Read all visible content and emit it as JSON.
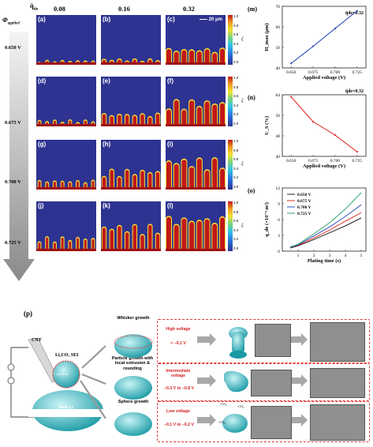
{
  "header": {
    "qde_symbol": "q̄",
    "qde_sub": "de",
    "phi_symbol": "Φ",
    "phi_sub": "applied"
  },
  "columns": [
    "0.08",
    "0.16",
    "0.32"
  ],
  "rows": [
    "0.650 V",
    "0.675 V",
    "0.700 V",
    "0.725 V"
  ],
  "panels": [
    "(a)",
    "(b)",
    "(c)",
    "(d)",
    "(e)",
    "(f)",
    "(g)",
    "(h)",
    "(i)",
    "(j)",
    "(k)",
    "(l)"
  ],
  "scale_bar": "20 μm",
  "colorbar": {
    "ticks": [
      "1.0",
      "0.8",
      "0.6",
      "0.4",
      "0.2",
      "0.0"
    ],
    "symbol": "ξ"
  },
  "chart_data": [
    {
      "panel": "(m)",
      "type": "line",
      "x": [
        0.65,
        0.675,
        0.7,
        0.725
      ],
      "y": [
        42.2,
        50.5,
        59.2,
        67.8
      ],
      "xlabel": "Applied voltage (V)",
      "ylabel": "H_max (μm)",
      "ylim": [
        40,
        70
      ],
      "yticks": [
        "40",
        "50",
        "60",
        "70"
      ],
      "xticks": [
        "0.650",
        "0.675",
        "0.700",
        "0.725"
      ],
      "annotation": "q̄de=0.32",
      "color": "#2f4fb8"
    },
    {
      "panel": "(n)",
      "type": "line",
      "x": [
        0.65,
        0.675,
        0.7,
        0.725
      ],
      "y": [
        63.2,
        53.5,
        48.3,
        41.8
      ],
      "xlabel": "Applied voltage (V)",
      "ylabel": "U_S (%)",
      "ylim": [
        40,
        64
      ],
      "yticks": [
        "40",
        "48",
        "56",
        "64"
      ],
      "xticks": [
        "0.650",
        "0.675",
        "0.700",
        "0.725"
      ],
      "annotation": "q̄de=0.32",
      "color": "#e0322b"
    },
    {
      "panel": "(o)",
      "type": "line",
      "x": [
        0.5,
        1,
        2,
        3,
        4,
        5
      ],
      "xlabel": "Plating time (s)",
      "ylabel": "q_de (×10⁻⁹ m²)",
      "ylim": [
        0,
        12
      ],
      "yticks": [
        "0",
        "3",
        "6",
        "9",
        "12"
      ],
      "xticks": [
        "1",
        "2",
        "3",
        "4",
        "5"
      ],
      "series": [
        {
          "name": "0.650 V",
          "color": "#222222",
          "values": [
            0.6,
            1.0,
            2.2,
            3.5,
            4.8,
            6.3
          ]
        },
        {
          "name": "0.675 V",
          "color": "#e0322b",
          "values": [
            0.7,
            1.1,
            2.5,
            4.0,
            5.7,
            7.3
          ]
        },
        {
          "name": "0.700 V",
          "color": "#2f4fb8",
          "values": [
            0.7,
            1.2,
            2.9,
            4.6,
            6.6,
            8.8
          ]
        },
        {
          "name": "0.725 V",
          "color": "#2aa36b",
          "values": [
            0.8,
            1.3,
            3.3,
            5.4,
            8.0,
            11.1
          ]
        }
      ]
    }
  ],
  "schematic": {
    "label": "(p)",
    "cnt": "CNT",
    "sei": "Li₂CO₃ SEI",
    "liparticle": "Li particle",
    "bulk": "Bulk Li",
    "whisker": "Whisker growth",
    "particle": "Particle growth with\nlocal extrusion &\nrounding",
    "sphere": "Sphere growth",
    "high": "High voltage",
    "high_range": "< −0.1 V",
    "inter": "Intermediate\nvoltage",
    "inter_range": "−0.3 V to −0.8 V",
    "low": "Low voltage",
    "low_range": "−0.1 V to −0.2 V",
    "co2": "CO₂"
  }
}
